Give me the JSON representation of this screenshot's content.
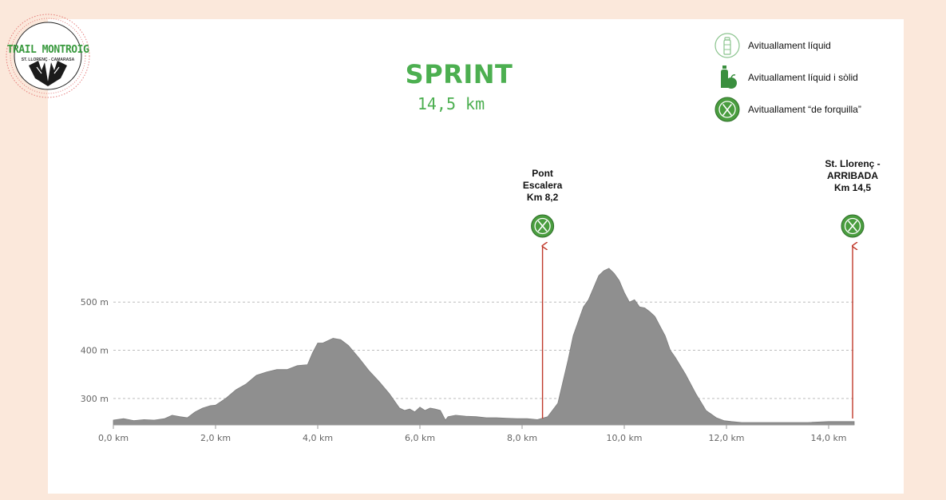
{
  "logo": {
    "text": "TRAIL MONTROIG",
    "subtitle": "ST. LLORENÇ - CAMARASA"
  },
  "header": {
    "title": "SPRINT",
    "distance": "14,5 km"
  },
  "legend": {
    "items": [
      {
        "label": "Avituallament líquid",
        "icon": "water-bottle-icon"
      },
      {
        "label": "Avituallament líquid i sòlid",
        "icon": "bottle-apple-icon"
      },
      {
        "label": "Avituallament “de forquilla”",
        "icon": "fork-knife-icon"
      }
    ]
  },
  "colors": {
    "background": "#fbe8db",
    "panel": "#ffffff",
    "accent_green": "#4caf50",
    "area_fill": "#8f8f8f",
    "arrow_red": "#c0392b",
    "grid": "#bdbdbd"
  },
  "chart_data": {
    "type": "area",
    "xlabel": "",
    "ylabel": "",
    "x_unit": "km",
    "y_unit": "m",
    "xlim": [
      0,
      14.5
    ],
    "ylim": [
      245,
      600
    ],
    "x_ticks": [
      {
        "value": 0,
        "label": "0,0 km"
      },
      {
        "value": 2,
        "label": "2,0 km"
      },
      {
        "value": 4,
        "label": "4,0 km"
      },
      {
        "value": 6,
        "label": "6,0 km"
      },
      {
        "value": 8,
        "label": "8,0 km"
      },
      {
        "value": 10,
        "label": "10,0 km"
      },
      {
        "value": 12,
        "label": "12,0 km"
      },
      {
        "value": 14,
        "label": "14,0 km"
      }
    ],
    "y_ticks": [
      {
        "value": 300,
        "label": "300 m"
      },
      {
        "value": 400,
        "label": "400 m"
      },
      {
        "value": 500,
        "label": "500 m"
      }
    ],
    "grid": "horizontal-dashed",
    "series": [
      {
        "x": [
          0,
          0.2,
          0.4,
          0.6,
          0.8,
          1.0,
          1.15,
          1.3,
          1.45,
          1.6,
          1.75,
          1.9,
          2.0,
          2.2,
          2.4,
          2.6,
          2.8,
          3.0,
          3.2,
          3.4,
          3.6,
          3.8,
          3.9,
          4.0,
          4.1,
          4.2,
          4.3,
          4.45,
          4.6,
          4.8,
          5.0,
          5.2,
          5.4,
          5.6,
          5.7,
          5.8,
          5.9,
          6.0,
          6.1,
          6.2,
          6.3,
          6.4,
          6.5,
          6.55,
          6.7,
          6.9,
          7.1,
          7.3,
          7.5,
          7.7,
          7.9,
          8.1,
          8.3,
          8.5,
          8.7,
          8.9,
          9.0,
          9.1,
          9.2,
          9.3,
          9.4,
          9.5,
          9.6,
          9.7,
          9.8,
          9.9,
          10.0,
          10.1,
          10.2,
          10.3,
          10.4,
          10.5,
          10.6,
          10.7,
          10.8,
          10.9,
          11.0,
          11.2,
          11.4,
          11.6,
          11.8,
          11.95,
          12.1,
          12.3,
          12.6,
          13.0,
          13.3,
          13.6,
          14.0,
          14.5
        ],
        "y": [
          255,
          258,
          254,
          256,
          255,
          258,
          265,
          262,
          260,
          272,
          280,
          285,
          286,
          300,
          318,
          330,
          348,
          355,
          360,
          360,
          368,
          370,
          395,
          415,
          415,
          420,
          425,
          422,
          410,
          385,
          358,
          335,
          310,
          280,
          275,
          278,
          272,
          282,
          275,
          280,
          278,
          275,
          255,
          262,
          265,
          263,
          262,
          260,
          260,
          259,
          258,
          258,
          256,
          262,
          290,
          380,
          430,
          460,
          490,
          505,
          530,
          555,
          565,
          570,
          560,
          545,
          520,
          500,
          505,
          490,
          488,
          480,
          470,
          450,
          430,
          400,
          385,
          350,
          310,
          275,
          260,
          254,
          252,
          250,
          250,
          250,
          250,
          250,
          252,
          252
        ]
      }
    ],
    "annotations": [
      {
        "x": 8.4,
        "lines": [
          "Pont",
          "Escalera",
          "Km 8,2"
        ],
        "icon": "fork-knife-icon"
      },
      {
        "x": 14.5,
        "lines": [
          "St. Llorenç -",
          "ARRIBADA",
          "Km 14,5"
        ],
        "icon": "fork-knife-icon"
      }
    ]
  }
}
